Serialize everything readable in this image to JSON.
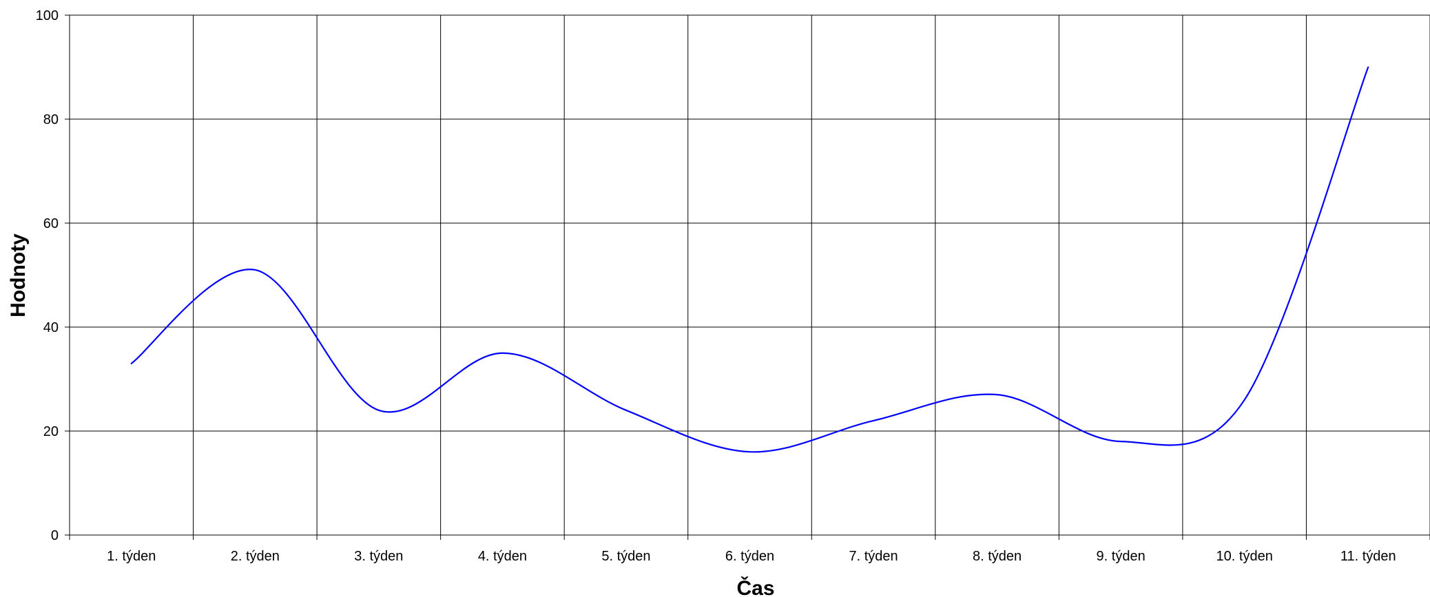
{
  "chart_data": {
    "type": "line",
    "title": "",
    "xlabel": "Čas",
    "ylabel": "Hodnoty",
    "categories": [
      "1. týden",
      "2. týden",
      "3. týden",
      "4. týden",
      "5. týden",
      "6. týden",
      "7. týden",
      "8. týden",
      "9. týden",
      "10. týden",
      "11. týden"
    ],
    "series": [
      {
        "values": [
          33,
          51,
          24,
          35,
          24,
          16,
          22,
          27,
          18,
          26,
          90
        ],
        "color": "#0000ff",
        "smooth": true
      }
    ],
    "ylim": [
      0,
      100
    ],
    "yticks": [
      0,
      20,
      40,
      60,
      80,
      100
    ],
    "grid": true,
    "legend": "none"
  }
}
